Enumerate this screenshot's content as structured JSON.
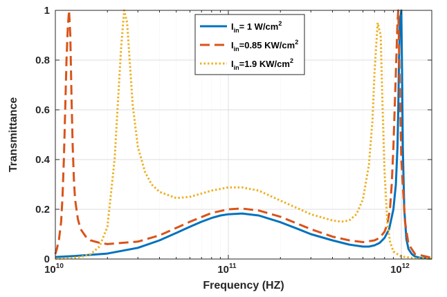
{
  "chart_data": {
    "type": "line",
    "title": "",
    "xlabel": "Frequency (HZ)",
    "ylabel": "Transmittance",
    "xscale": "log",
    "xlim": [
      10000000000.0,
      1500000000000.0
    ],
    "ylim": [
      0,
      1
    ],
    "grid": true,
    "legend_position": "top-right",
    "x_ticks": [
      {
        "base": "10",
        "exp": "10"
      },
      {
        "base": "10",
        "exp": "11"
      },
      {
        "base": "10",
        "exp": "12"
      }
    ],
    "y_ticks": [
      "0",
      "0.2",
      "0.4",
      "0.6",
      "0.8",
      "1"
    ],
    "series": [
      {
        "label_main": "I",
        "label_sub": "in",
        "label_rest": "= 1 W/cm",
        "label_sup": "2",
        "color": "#0072BD",
        "style": "solid",
        "x": [
          10000000000.0,
          13000000000.0,
          20000000000.0,
          30000000000.0,
          40000000000.0,
          50000000000.0,
          60000000000.0,
          70000000000.0,
          80000000000.0,
          90000000000.0,
          100000000000.0,
          120000000000.0,
          150000000000.0,
          200000000000.0,
          250000000000.0,
          300000000000.0,
          400000000000.0,
          500000000000.0,
          600000000000.0,
          650000000000.0,
          700000000000.0,
          750000000000.0,
          800000000000.0,
          850000000000.0,
          900000000000.0,
          930000000000.0,
          950000000000.0,
          960000000000.0,
          970000000000.0,
          980000000000.0,
          1000000000000.0,
          1010000000000.0,
          1020000000000.0,
          1040000000000.0,
          1070000000000.0,
          1100000000000.0,
          1150000000000.0,
          1200000000000.0,
          1300000000000.0,
          1500000000000.0
        ],
        "y": [
          0.008,
          0.012,
          0.022,
          0.045,
          0.075,
          0.105,
          0.13,
          0.15,
          0.165,
          0.175,
          0.18,
          0.183,
          0.175,
          0.148,
          0.122,
          0.1,
          0.075,
          0.058,
          0.05,
          0.05,
          0.055,
          0.065,
          0.085,
          0.12,
          0.2,
          0.3,
          0.45,
          0.6,
          0.8,
          0.95,
          1.0,
          0.75,
          0.45,
          0.2,
          0.08,
          0.04,
          0.02,
          0.01,
          0.004,
          0.001
        ]
      },
      {
        "label_main": "I",
        "label_sub": "in",
        "label_rest": "=0.85 KW/cm",
        "label_sup": "2",
        "color": "#D95319",
        "style": "dashed",
        "x": [
          10000000000.0,
          10200000000.0,
          10500000000.0,
          10800000000.0,
          11000000000.0,
          11200000000.0,
          11400000000.0,
          11600000000.0,
          11800000000.0,
          12000000000.0,
          12200000000.0,
          12400000000.0,
          12600000000.0,
          12800000000.0,
          13000000000.0,
          13500000000.0,
          14000000000.0,
          15000000000.0,
          16000000000.0,
          18000000000.0,
          20000000000.0,
          30000000000.0,
          40000000000.0,
          50000000000.0,
          60000000000.0,
          80000000000.0,
          100000000000.0,
          120000000000.0,
          150000000000.0,
          200000000000.0,
          300000000000.0,
          400000000000.0,
          500000000000.0,
          600000000000.0,
          700000000000.0,
          750000000000.0,
          800000000000.0,
          830000000000.0,
          860000000000.0,
          880000000000.0,
          900000000000.0,
          920000000000.0,
          940000000000.0,
          950000000000.0,
          960000000000.0,
          980000000000.0,
          1000000000000.0,
          1050000000000.0,
          1100000000000.0,
          1200000000000.0,
          1500000000000.0
        ],
        "y": [
          0.02,
          0.04,
          0.08,
          0.15,
          0.25,
          0.4,
          0.6,
          0.8,
          0.93,
          1.0,
          0.9,
          0.65,
          0.45,
          0.32,
          0.24,
          0.16,
          0.12,
          0.09,
          0.075,
          0.065,
          0.06,
          0.07,
          0.095,
          0.125,
          0.15,
          0.185,
          0.2,
          0.203,
          0.195,
          0.17,
          0.12,
          0.09,
          0.075,
          0.068,
          0.075,
          0.085,
          0.11,
          0.14,
          0.2,
          0.3,
          0.45,
          0.65,
          0.85,
          0.95,
          1.0,
          0.7,
          0.4,
          0.15,
          0.06,
          0.02,
          0.005
        ]
      },
      {
        "label_main": "I",
        "label_sub": "in",
        "label_rest": "=1.9 KW/cm",
        "label_sup": "2",
        "color": "#EDB120",
        "style": "dotted",
        "x": [
          10000000000.0,
          12000000000.0,
          14000000000.0,
          16000000000.0,
          18000000000.0,
          20000000000.0,
          22000000000.0,
          24000000000.0,
          25000000000.0,
          26000000000.0,
          27000000000.0,
          28000000000.0,
          30000000000.0,
          33000000000.0,
          36000000000.0,
          40000000000.0,
          50000000000.0,
          60000000000.0,
          80000000000.0,
          100000000000.0,
          120000000000.0,
          150000000000.0,
          200000000000.0,
          300000000000.0,
          400000000000.0,
          450000000000.0,
          500000000000.0,
          550000000000.0,
          600000000000.0,
          650000000000.0,
          680000000000.0,
          700000000000.0,
          730000000000.0,
          760000000000.0,
          780000000000.0,
          800000000000.0,
          830000000000.0,
          860000000000.0,
          900000000000.0,
          1000000000000.0,
          1200000000000.0,
          1500000000000.0
        ],
        "y": [
          0.001,
          0.003,
          0.008,
          0.02,
          0.05,
          0.13,
          0.4,
          0.85,
          1.0,
          0.95,
          0.78,
          0.62,
          0.45,
          0.35,
          0.3,
          0.27,
          0.245,
          0.25,
          0.275,
          0.288,
          0.288,
          0.275,
          0.235,
          0.18,
          0.155,
          0.15,
          0.155,
          0.18,
          0.24,
          0.38,
          0.55,
          0.75,
          0.95,
          0.9,
          0.6,
          0.35,
          0.15,
          0.07,
          0.03,
          0.01,
          0.003,
          0.001
        ]
      }
    ]
  }
}
